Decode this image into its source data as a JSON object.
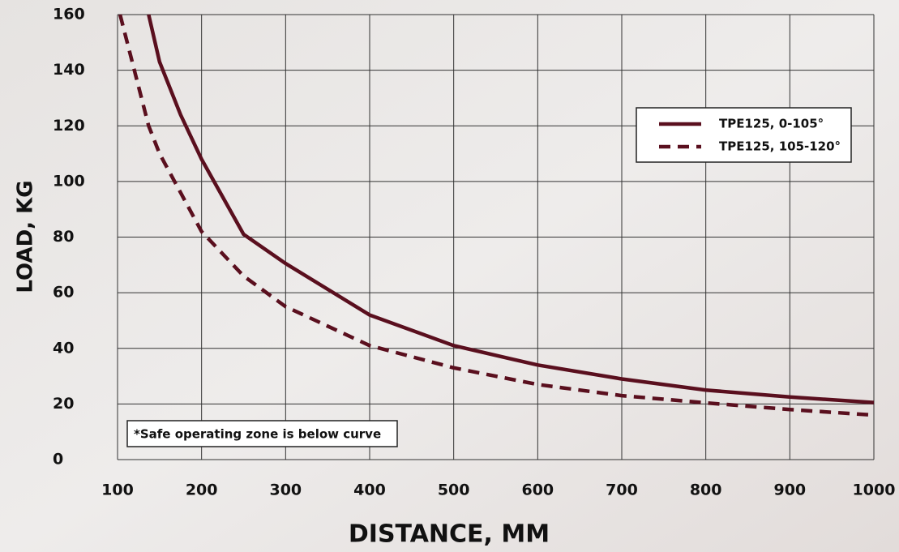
{
  "chart_data": {
    "type": "line",
    "xlabel": "DISTANCE, MM",
    "ylabel": "LOAD, KG",
    "annotation": "*Safe operating zone is below curve",
    "x": [
      103,
      137,
      150,
      175,
      200,
      250,
      300,
      400,
      500,
      600,
      700,
      800,
      900,
      1000
    ],
    "series": [
      {
        "name": "TPE125, 0-105°",
        "color": "#5a0f1e",
        "line_style": "solid",
        "values": [
          null,
          160,
          143,
          124,
          108,
          81,
          70.5,
          52,
          41,
          34,
          29,
          25,
          22.5,
          20.5
        ]
      },
      {
        "name": "TPE125, 105-120°",
        "color": "#5a0f1e",
        "line_style": "dashed",
        "values": [
          160,
          120,
          110,
          96,
          82,
          66,
          55,
          41,
          33,
          27,
          23,
          20.4,
          18,
          16
        ]
      }
    ],
    "xlim": [
      100,
      1000
    ],
    "xticks": [
      100,
      200,
      300,
      400,
      500,
      600,
      700,
      800,
      900,
      1000
    ],
    "ylim": [
      0,
      160
    ],
    "yticks": [
      0,
      20,
      40,
      60,
      80,
      100,
      120,
      140,
      160
    ],
    "grid": true,
    "legend": "upper right"
  }
}
